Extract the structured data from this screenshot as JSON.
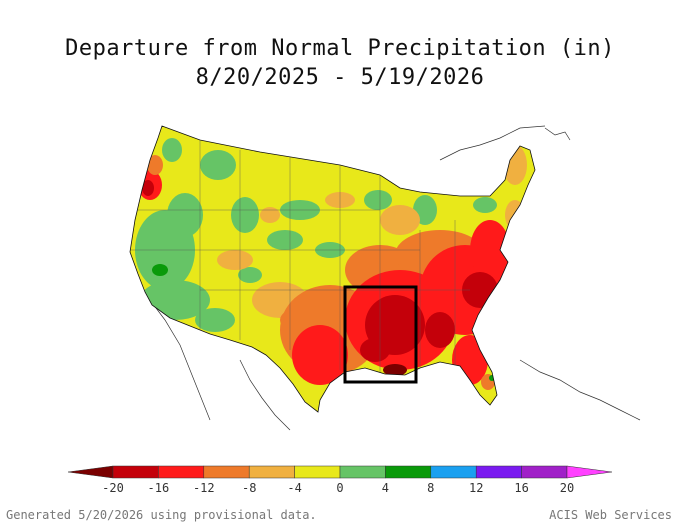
{
  "title": {
    "line1": "Departure from Normal Precipitation (in)",
    "line2": "8/20/2025 - 5/19/2026"
  },
  "legend": {
    "ticks": [
      "-20",
      "-16",
      "-12",
      "-8",
      "-4",
      "0",
      "4",
      "8",
      "12",
      "16",
      "20"
    ],
    "colors": [
      "#7a0000",
      "#c4000a",
      "#ff1a1a",
      "#ee7a2a",
      "#f0b040",
      "#e8e81a",
      "#66c466",
      "#0a9a0a",
      "#1aa0f0",
      "#7a1af0",
      "#a020c8",
      "#ff40ff"
    ]
  },
  "footer": {
    "left": "Generated 5/20/2026 using provisional data.",
    "right": "ACIS Web Services"
  }
}
